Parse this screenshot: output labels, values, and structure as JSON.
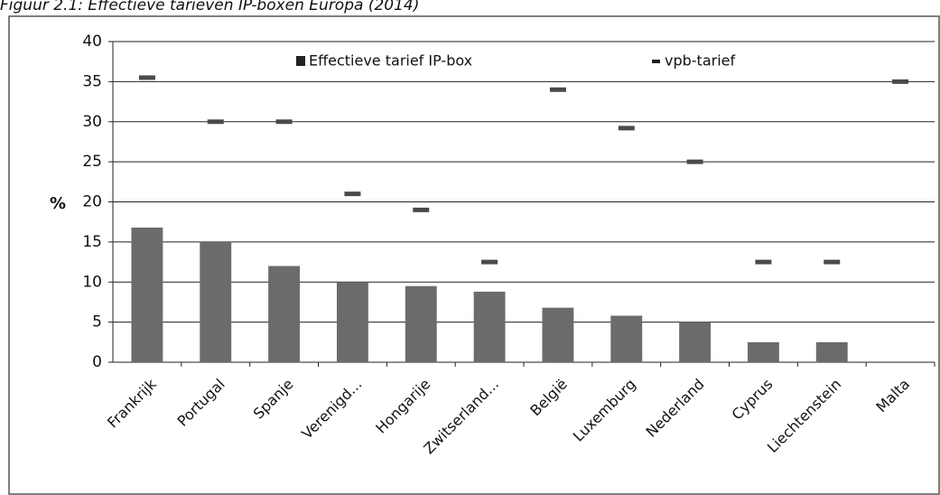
{
  "chart_data": {
    "type": "bar",
    "title": "Figuur 2.1: Effectieve tarieven IP-boxen Europa (2014)",
    "y_label": "%",
    "categories": [
      "Frankrijk",
      "Portugal",
      "Spanje",
      "Verenigd...",
      "Hongarije",
      "Zwitserland...",
      "België",
      "Luxemburg",
      "Nederland",
      "Cyprus",
      "Liechtenstein",
      "Malta"
    ],
    "series": [
      {
        "name": "Effectieve tarief IP-box",
        "type": "bar",
        "color": "#6b6b6b",
        "values": [
          16.8,
          15,
          12,
          10,
          9.5,
          8.8,
          6.8,
          5.8,
          5,
          2.5,
          2.5,
          0
        ]
      },
      {
        "name": "vpb-tarief",
        "type": "dash",
        "color": "#4a4a4a",
        "values": [
          35.5,
          30,
          30,
          21,
          19,
          12.5,
          34,
          29.2,
          25,
          12.5,
          12.5,
          35
        ]
      }
    ],
    "ylim": [
      0,
      40
    ],
    "yticks": [
      0,
      5,
      10,
      15,
      20,
      25,
      30,
      35,
      40
    ],
    "grid": true
  }
}
